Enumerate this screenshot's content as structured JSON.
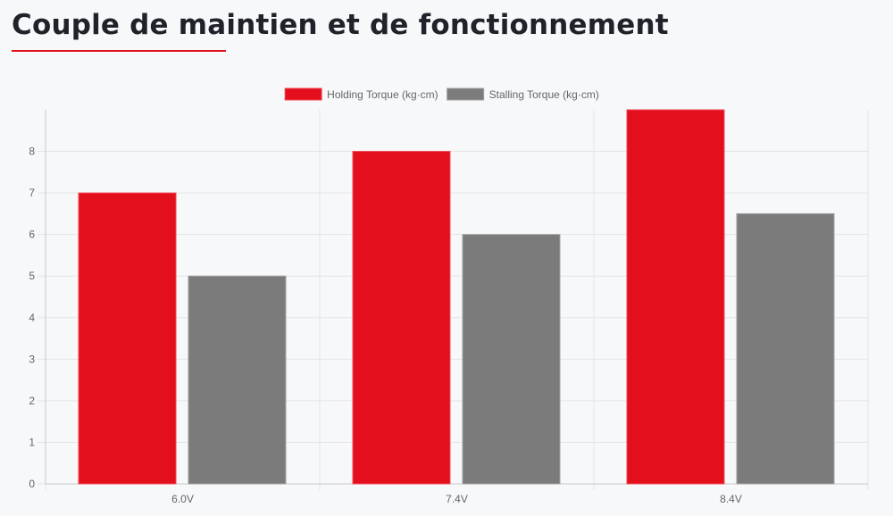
{
  "page": {
    "heading": "Couple de maintien et de fonctionnement",
    "accent_color": "#e0101d"
  },
  "chart_data": {
    "type": "bar",
    "categories": [
      "6.0V",
      "7.4V",
      "8.4V"
    ],
    "series": [
      {
        "name": "Holding Torque (kg·cm)",
        "values": [
          7,
          8,
          9
        ],
        "color": "#e30f1c"
      },
      {
        "name": "Stalling Torque (kg·cm)",
        "values": [
          5,
          6,
          6.5
        ],
        "color": "#7b7b7b"
      }
    ],
    "title": "",
    "xlabel": "",
    "ylabel": "",
    "ylim": [
      0,
      9
    ],
    "yticks": [
      0,
      1,
      2,
      3,
      4,
      5,
      6,
      7,
      8
    ],
    "grid": true,
    "legend_position": "top-center"
  }
}
